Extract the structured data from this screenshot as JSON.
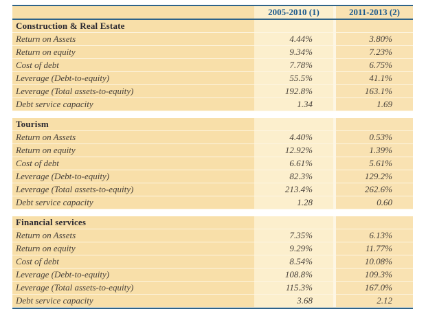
{
  "table": {
    "columns": [
      "2005-2010 (1)",
      "2011-2013 (2)"
    ],
    "sections": [
      {
        "title": "Construction & Real Estate",
        "rows": [
          {
            "label": "Return on Assets",
            "v1": "4.44%",
            "v2": "3.80%"
          },
          {
            "label": "Return on equity",
            "v1": "9.34%",
            "v2": "7.23%"
          },
          {
            "label": "Cost of debt",
            "v1": "7.78%",
            "v2": "6.75%"
          },
          {
            "label": "Leverage (Debt-to-equity)",
            "v1": "55.5%",
            "v2": "41.1%"
          },
          {
            "label": "Leverage (Total assets-to-equity)",
            "v1": "192.8%",
            "v2": "163.1%"
          },
          {
            "label": "Debt service capacity",
            "v1": "1.34",
            "v2": "1.69"
          }
        ]
      },
      {
        "title": "Tourism",
        "rows": [
          {
            "label": "Return on Assets",
            "v1": "4.40%",
            "v2": "0.53%"
          },
          {
            "label": "Return on equity",
            "v1": "12.92%",
            "v2": "1.39%"
          },
          {
            "label": "Cost of debt",
            "v1": "6.61%",
            "v2": "5.61%"
          },
          {
            "label": "Leverage (Debt-to-equity)",
            "v1": "82.3%",
            "v2": "129.2%"
          },
          {
            "label": "Leverage (Total assets-to-equity)",
            "v1": "213.4%",
            "v2": "262.6%"
          },
          {
            "label": "Debt service capacity",
            "v1": "1.28",
            "v2": "0.60"
          }
        ]
      },
      {
        "title": "Financial services",
        "rows": [
          {
            "label": "Return on Assets",
            "v1": "7.35%",
            "v2": "6.13%"
          },
          {
            "label": "Return on equity",
            "v1": "9.29%",
            "v2": "11.77%"
          },
          {
            "label": "Cost of debt",
            "v1": "8.54%",
            "v2": "10.08%"
          },
          {
            "label": "Leverage (Debt-to-equity)",
            "v1": "108.8%",
            "v2": "109.3%"
          },
          {
            "label": "Leverage (Total assets-to-equity)",
            "v1": "115.3%",
            "v2": "167.0%"
          },
          {
            "label": "Debt service capacity",
            "v1": "3.68",
            "v2": "2.12"
          }
        ]
      }
    ]
  },
  "colors": {
    "row_tan": "#f8dfa9",
    "col1_light": "#fcefcd",
    "col2_tan": "#f9e2b2",
    "rule_blue": "#2e6389",
    "header_text_blue": "#1c5a8d",
    "section_title_text": "#2a2830",
    "data_text": "#474039"
  }
}
